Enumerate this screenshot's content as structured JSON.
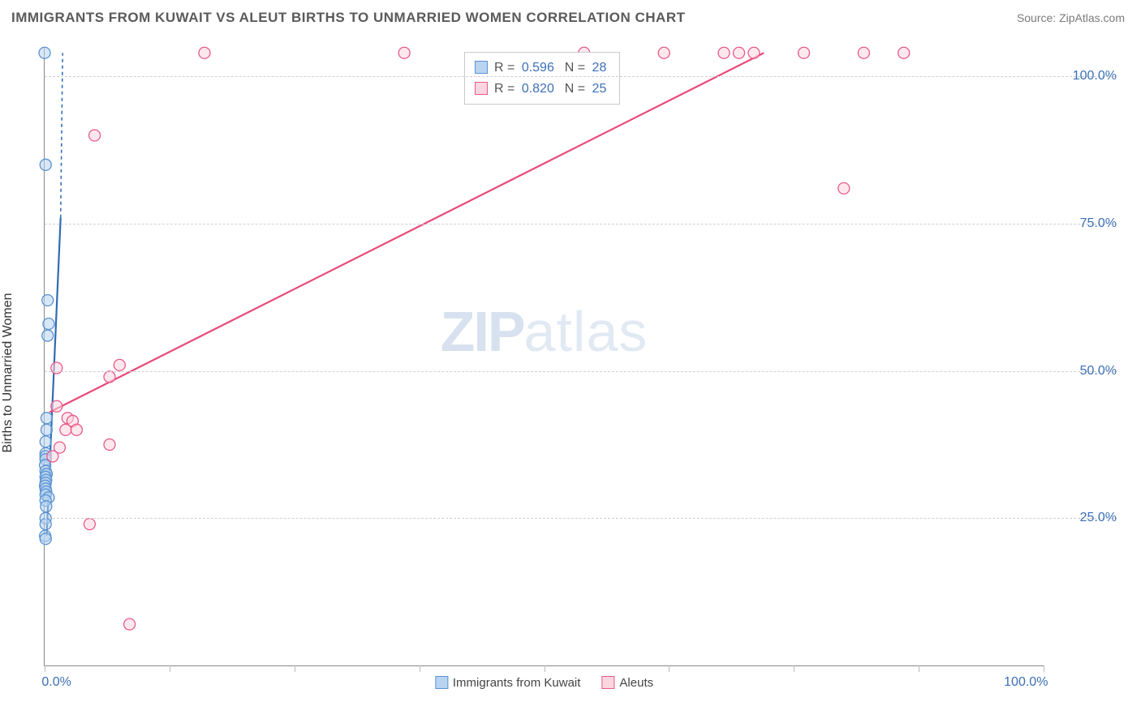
{
  "header": {
    "title": "IMMIGRANTS FROM KUWAIT VS ALEUT BIRTHS TO UNMARRIED WOMEN CORRELATION CHART",
    "source": "Source: ZipAtlas.com"
  },
  "axes": {
    "ylabel": "Births to Unmarried Women",
    "ylim": [
      0,
      105
    ],
    "yticks": [
      25,
      50,
      75,
      100
    ],
    "ytick_labels": [
      "25.0%",
      "50.0%",
      "75.0%",
      "100.0%"
    ],
    "xlim": [
      0,
      100
    ],
    "xtick_positions": [
      0,
      12.5,
      25,
      37.5,
      50,
      62.5,
      75,
      87.5,
      100
    ],
    "xtick_labels": {
      "0": "0.0%",
      "100": "100.0%"
    }
  },
  "colors": {
    "series1_fill": "#b8d4f0",
    "series1_stroke": "#5a93d1",
    "series2_fill": "#fbd5e0",
    "series2_stroke": "#e85a8a",
    "axis": "#888888",
    "grid": "#d0d0d0",
    "tick_text": "#3b6fb6",
    "label_text": "#333333",
    "line1": "#2f6bb3",
    "line2": "#e84a7a"
  },
  "legend": {
    "bottom": [
      {
        "label": "Immigrants from Kuwait",
        "fill": "#b8d4f0",
        "stroke": "#5a93d1"
      },
      {
        "label": "Aleuts",
        "fill": "#fbd5e0",
        "stroke": "#e85a8a"
      }
    ],
    "box": [
      {
        "fill": "#b8d4f0",
        "stroke": "#5a93d1",
        "r_label": "R = ",
        "r": "0.596",
        "n_label": "N = ",
        "n": "28"
      },
      {
        "fill": "#fbd5e0",
        "stroke": "#e85a8a",
        "r_label": "R = ",
        "r": "0.820",
        "n_label": "N = ",
        "n": "25"
      }
    ]
  },
  "watermark": {
    "bold": "ZIP",
    "rest": "atlas"
  },
  "chart": {
    "type": "scatter",
    "marker_radius": 7,
    "marker_opacity": 0.55,
    "line_width": 2.2,
    "series": [
      {
        "name": "Immigrants from Kuwait",
        "color_fill": "#b8d4f0",
        "color_stroke": "#5a93d1",
        "trend_color": "#2f6bb3",
        "trend": {
          "x1": 0.2,
          "y1": 22,
          "x2": 1.6,
          "y2": 76,
          "dash_x2": 1.8,
          "dash_y2": 104
        },
        "points": [
          [
            0.0,
            104
          ],
          [
            0.1,
            85
          ],
          [
            0.3,
            62
          ],
          [
            0.4,
            58
          ],
          [
            0.3,
            56
          ],
          [
            0.2,
            42
          ],
          [
            0.2,
            40
          ],
          [
            0.1,
            38
          ],
          [
            0.1,
            36
          ],
          [
            0.1,
            35.5
          ],
          [
            0.1,
            35
          ],
          [
            0.05,
            34
          ],
          [
            0.1,
            33
          ],
          [
            0.2,
            32.5
          ],
          [
            0.1,
            32
          ],
          [
            0.15,
            31.5
          ],
          [
            0.1,
            31
          ],
          [
            0.05,
            30.5
          ],
          [
            0.1,
            30
          ],
          [
            0.15,
            29.5
          ],
          [
            0.1,
            29
          ],
          [
            0.4,
            28.5
          ],
          [
            0.1,
            28
          ],
          [
            0.15,
            27
          ],
          [
            0.1,
            25
          ],
          [
            0.1,
            24
          ],
          [
            0.05,
            22
          ],
          [
            0.1,
            21.5
          ]
        ]
      },
      {
        "name": "Aleuts",
        "color_fill": "#fbd5e0",
        "color_stroke": "#e85a8a",
        "trend_color": "#e84a7a",
        "trend": {
          "x1": 0.5,
          "y1": 43,
          "x2": 72,
          "y2": 104
        },
        "points": [
          [
            16,
            104
          ],
          [
            36,
            104
          ],
          [
            54,
            104
          ],
          [
            62,
            104
          ],
          [
            68,
            104
          ],
          [
            69.5,
            104
          ],
          [
            71,
            104
          ],
          [
            76,
            104
          ],
          [
            82,
            104
          ],
          [
            86,
            104
          ],
          [
            5,
            90
          ],
          [
            80,
            81
          ],
          [
            1.2,
            50.5
          ],
          [
            7.5,
            51
          ],
          [
            6.5,
            49
          ],
          [
            1.2,
            44
          ],
          [
            2.3,
            42
          ],
          [
            2.8,
            41.5
          ],
          [
            2.1,
            40
          ],
          [
            3.2,
            40
          ],
          [
            1.5,
            37
          ],
          [
            6.5,
            37.5
          ],
          [
            0.8,
            35.5
          ],
          [
            4.5,
            24
          ],
          [
            8.5,
            7
          ]
        ]
      }
    ]
  }
}
